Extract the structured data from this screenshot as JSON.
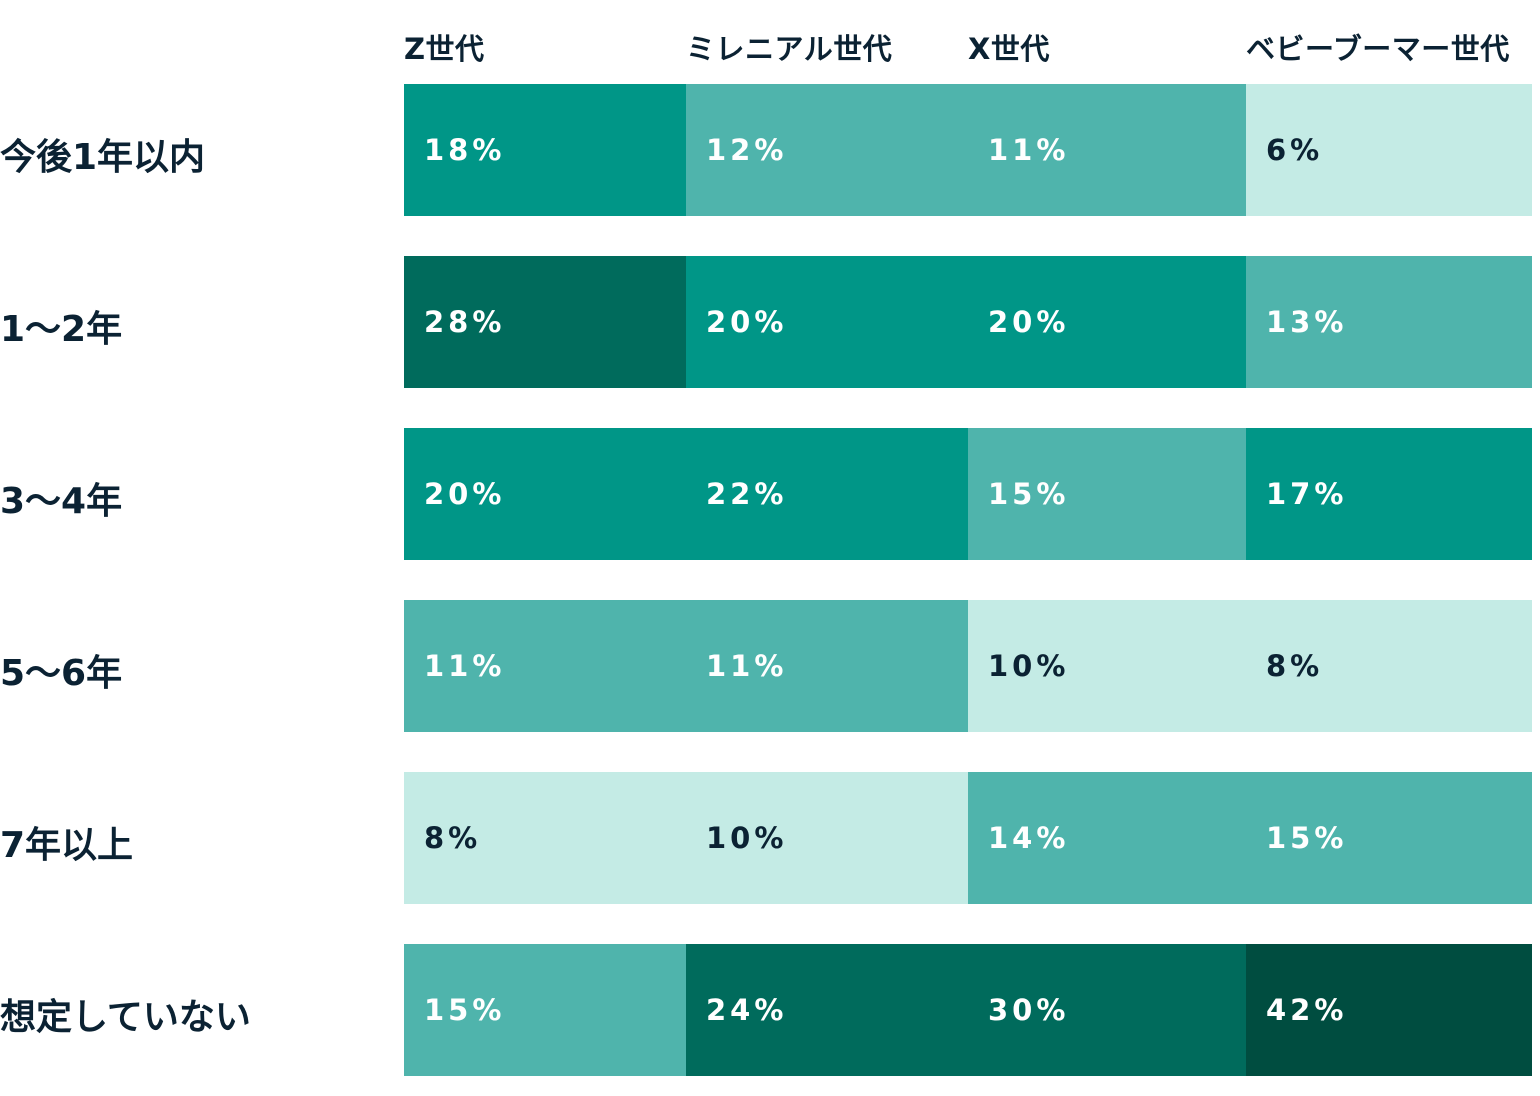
{
  "chart_data": {
    "type": "heatmap",
    "columns": [
      "Z世代",
      "ミレニアル世代",
      "X世代",
      "ベビーブーマー世代"
    ],
    "rows": [
      "今後1年以内",
      "1〜2年",
      "3〜4年",
      "5〜6年",
      "7年以上",
      "想定していない"
    ],
    "values": [
      [
        18,
        12,
        11,
        6
      ],
      [
        28,
        20,
        20,
        13
      ],
      [
        20,
        22,
        15,
        17
      ],
      [
        11,
        11,
        10,
        8
      ],
      [
        8,
        10,
        14,
        15
      ],
      [
        15,
        24,
        30,
        42
      ]
    ],
    "unit": "%",
    "color_scale": [
      {
        "max": 10,
        "color": "#c4ebe5",
        "text": "#0b2233"
      },
      {
        "max": 15,
        "color": "#4fb4ac",
        "text": "#ffffff"
      },
      {
        "max": 22,
        "color": "#009687",
        "text": "#ffffff"
      },
      {
        "max": 30,
        "color": "#006b5c",
        "text": "#ffffff"
      },
      {
        "max": 100,
        "color": "#004d40",
        "text": "#ffffff"
      }
    ]
  }
}
